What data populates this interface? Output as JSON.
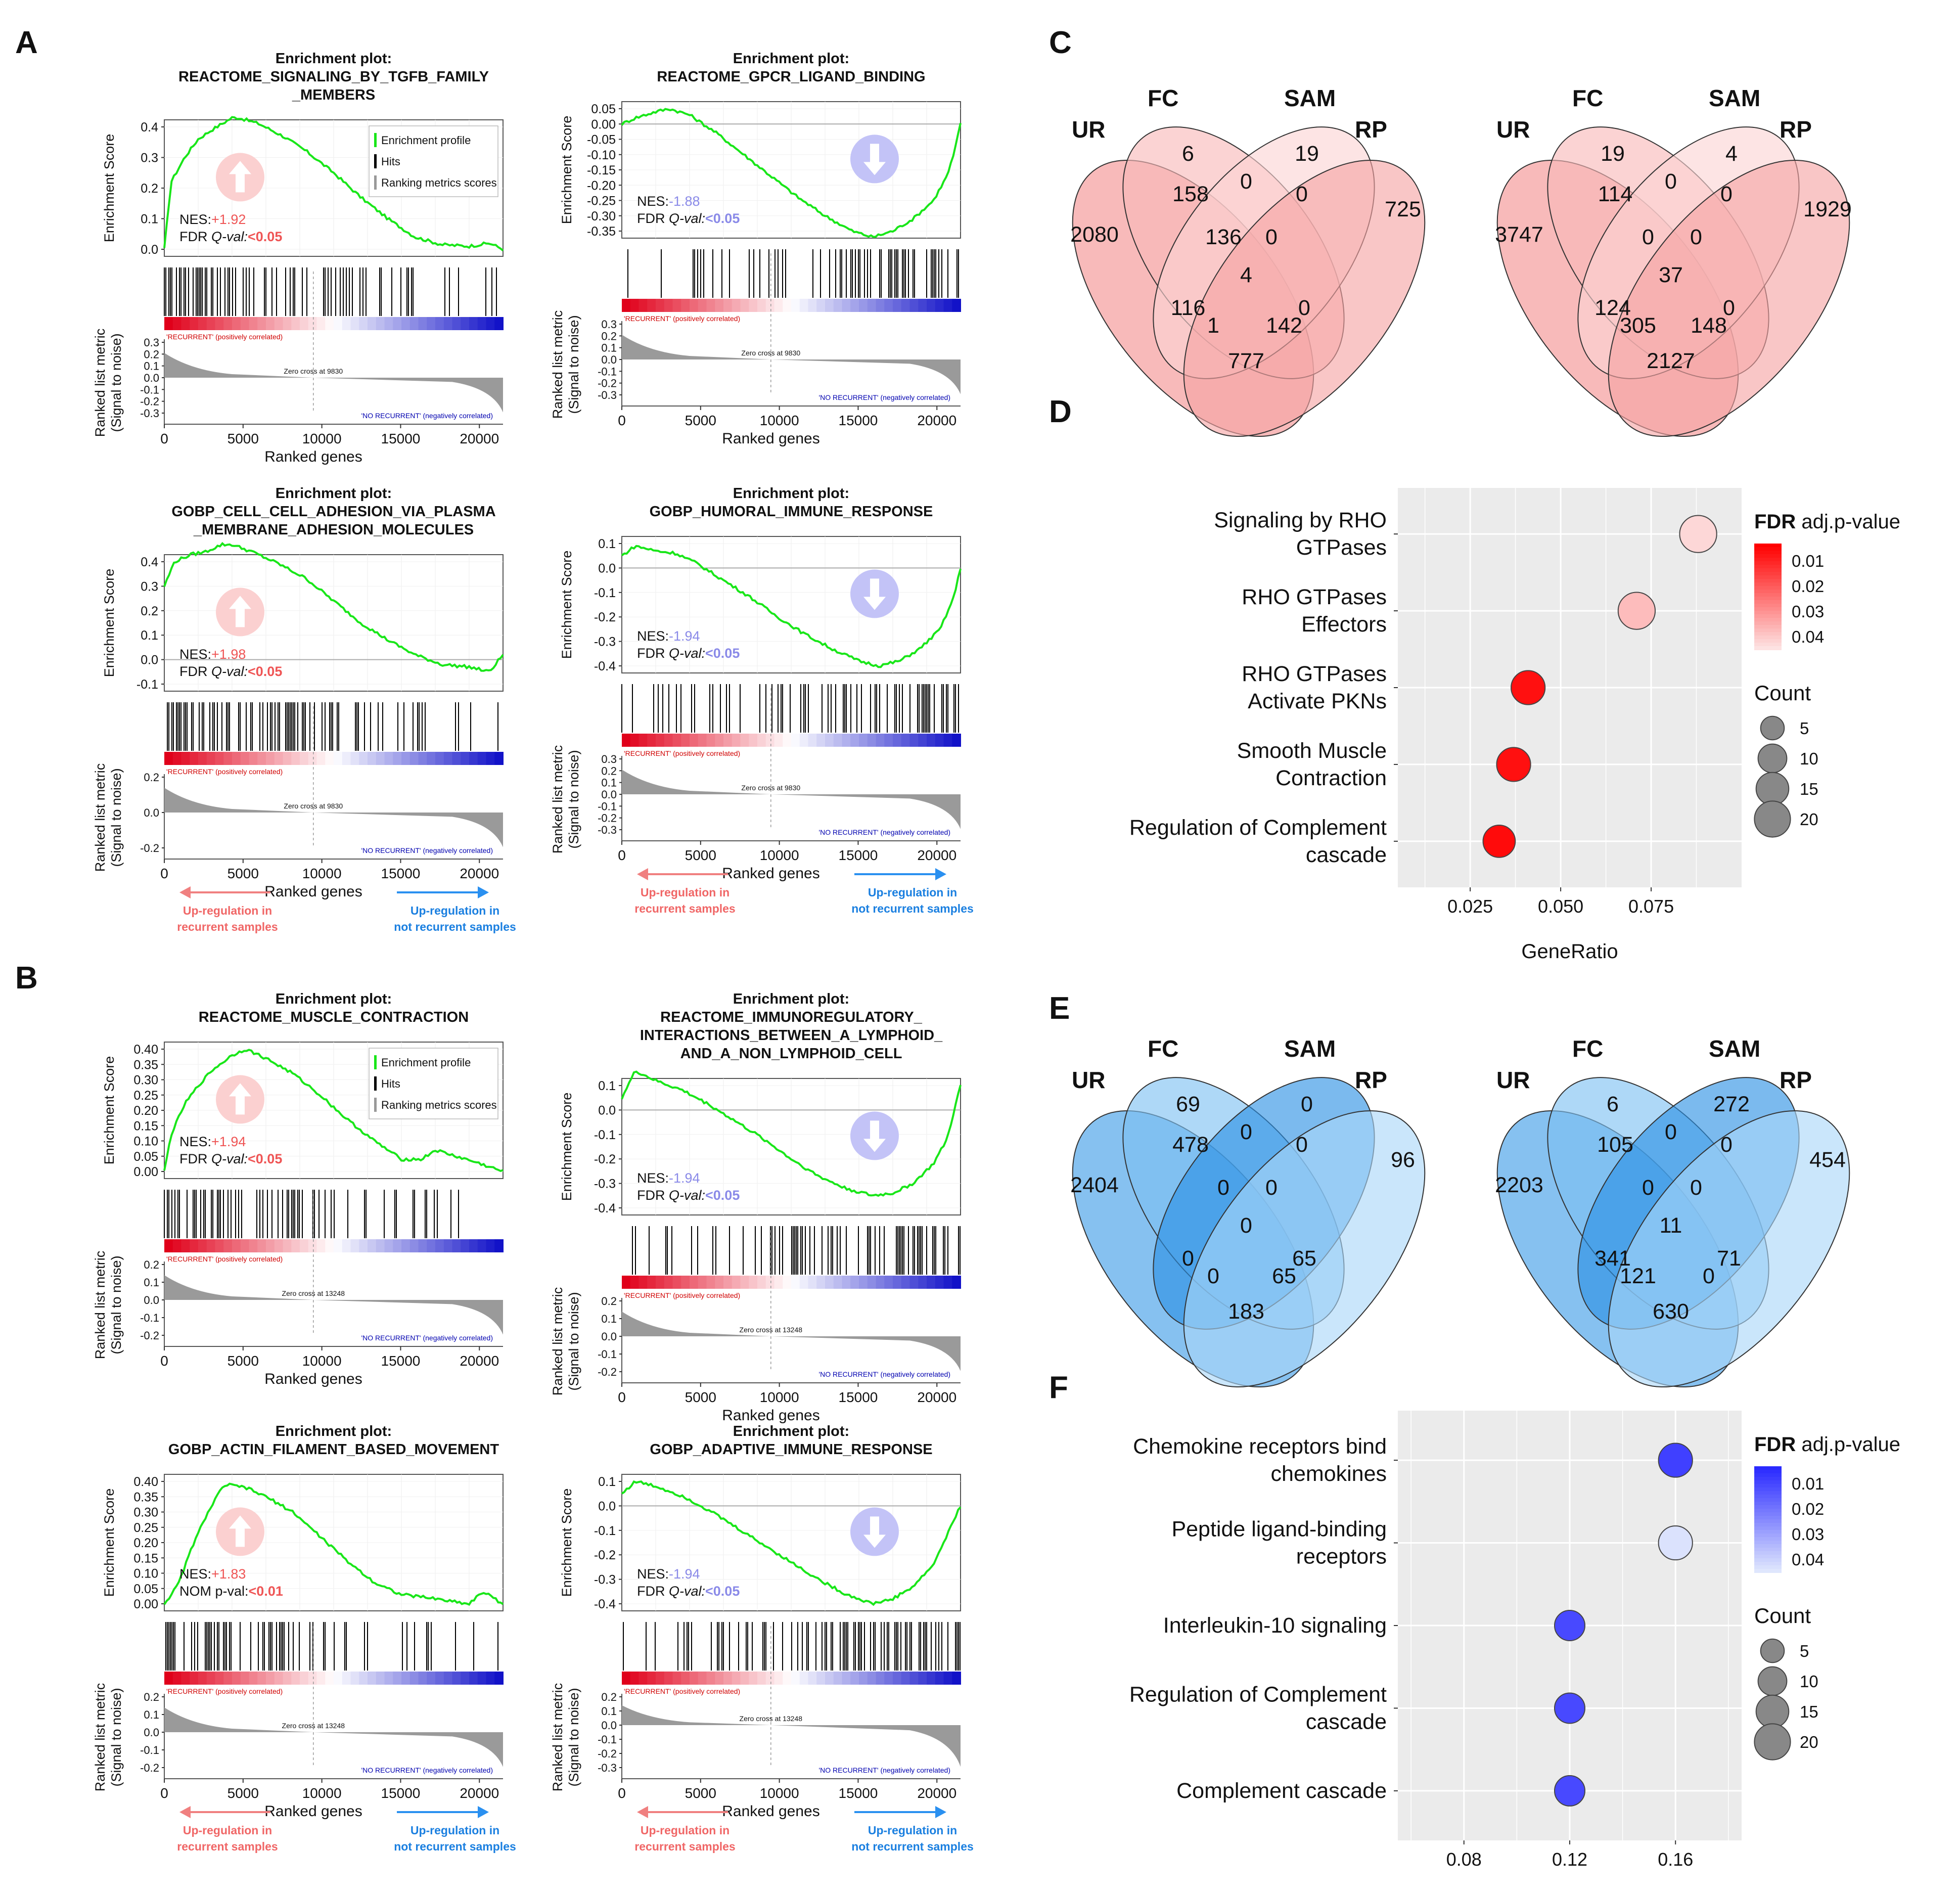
{
  "panel_labels": [
    "A",
    "B",
    "C",
    "D",
    "E",
    "F"
  ],
  "gsea": [
    {
      "title": [
        "Enrichment plot:",
        "REACTOME_SIGNALING_BY_TGFB_FAMILY",
        "_MEMBERS"
      ],
      "es_ticks": [
        "0.4",
        "0.3",
        "0.2",
        "0.1",
        "0.0"
      ],
      "es_curve": [
        [
          0,
          0
        ],
        [
          0.02,
          0.22
        ],
        [
          0.06,
          0.3
        ],
        [
          0.1,
          0.36
        ],
        [
          0.14,
          0.39
        ],
        [
          0.2,
          0.43
        ],
        [
          0.22,
          0.43
        ],
        [
          0.28,
          0.41
        ],
        [
          0.35,
          0.37
        ],
        [
          0.42,
          0.32
        ],
        [
          0.5,
          0.25
        ],
        [
          0.58,
          0.17
        ],
        [
          0.66,
          0.1
        ],
        [
          0.74,
          0.04
        ],
        [
          0.82,
          0.015
        ],
        [
          0.9,
          0.01
        ],
        [
          0.96,
          0.02
        ],
        [
          1,
          0
        ]
      ],
      "rm_ticks": [
        "0.3",
        "0.2",
        "0.1",
        "0.0",
        "-0.1",
        "-0.2",
        "-0.3"
      ],
      "zero_cross": "Zero cross at 9830",
      "nes_label": "NES:",
      "nes": "+1.92",
      "stat_label": "FDR ",
      "stat_label_em": "Q-val:",
      "stat_val": "<0.05",
      "direction": "up",
      "legend": true,
      "legend_items": [
        "Enrichment profile",
        "Hits",
        "Ranking metrics scores"
      ],
      "bottom_arrows": false
    },
    {
      "title": [
        "Enrichment plot:",
        "REACTOME_GPCR_LIGAND_BINDING"
      ],
      "es_ticks": [
        "0.05",
        "0.00",
        "-0.05",
        "-0.10",
        "-0.15",
        "-0.20",
        "-0.25",
        "-0.30",
        "-0.35"
      ],
      "es_curve": [
        [
          0,
          0
        ],
        [
          0.04,
          0.02
        ],
        [
          0.1,
          0.04
        ],
        [
          0.14,
          0.05
        ],
        [
          0.2,
          0.03
        ],
        [
          0.28,
          -0.03
        ],
        [
          0.36,
          -0.1
        ],
        [
          0.44,
          -0.17
        ],
        [
          0.52,
          -0.24
        ],
        [
          0.6,
          -0.3
        ],
        [
          0.68,
          -0.35
        ],
        [
          0.74,
          -0.37
        ],
        [
          0.8,
          -0.35
        ],
        [
          0.86,
          -0.31
        ],
        [
          0.92,
          -0.25
        ],
        [
          0.96,
          -0.17
        ],
        [
          0.98,
          -0.1
        ],
        [
          1,
          0
        ]
      ],
      "rm_ticks": [
        "0.3",
        "0.2",
        "0.1",
        "0.0",
        "-0.1",
        "-0.2",
        "-0.3"
      ],
      "zero_cross": "Zero cross at 9830",
      "nes_label": "NES:",
      "nes": "-1.88",
      "stat_label": "FDR ",
      "stat_label_em": "Q-val:",
      "stat_val": "<0.05",
      "direction": "down",
      "legend": false,
      "bottom_arrows": false
    },
    {
      "title": [
        "Enrichment plot:",
        "GOBP_CELL_CELL_ADHESION_VIA_PLASMA",
        "_MEMBRANE_ADHESION_MOLECULES"
      ],
      "es_ticks": [
        "0.4",
        "0.3",
        "0.2",
        "0.1",
        "0.0",
        "-0.1"
      ],
      "es_curve": [
        [
          0,
          0.3
        ],
        [
          0.03,
          0.4
        ],
        [
          0.08,
          0.43
        ],
        [
          0.12,
          0.44
        ],
        [
          0.17,
          0.47
        ],
        [
          0.2,
          0.47
        ],
        [
          0.26,
          0.44
        ],
        [
          0.34,
          0.39
        ],
        [
          0.42,
          0.33
        ],
        [
          0.5,
          0.24
        ],
        [
          0.58,
          0.15
        ],
        [
          0.66,
          0.08
        ],
        [
          0.74,
          0.02
        ],
        [
          0.82,
          -0.02
        ],
        [
          0.9,
          -0.03
        ],
        [
          0.96,
          -0.05
        ],
        [
          1,
          0.02
        ]
      ],
      "rm_ticks": [
        "0.2",
        "0.0",
        "-0.2"
      ],
      "zero_cross": "Zero cross at 9830",
      "nes_label": "NES:",
      "nes": "+1.98",
      "stat_label": "FDR ",
      "stat_label_em": "Q-val:",
      "stat_val": "<0.05",
      "direction": "up",
      "legend": false,
      "bottom_arrows": true
    },
    {
      "title": [
        "Enrichment plot:",
        "GOBP_HUMORAL_IMMUNE_RESPONSE"
      ],
      "es_ticks": [
        "0.1",
        "0.0",
        "-0.1",
        "-0.2",
        "-0.3",
        "-0.4"
      ],
      "es_curve": [
        [
          0,
          0.05
        ],
        [
          0.04,
          0.09
        ],
        [
          0.1,
          0.07
        ],
        [
          0.16,
          0.06
        ],
        [
          0.22,
          0.02
        ],
        [
          0.3,
          -0.05
        ],
        [
          0.38,
          -0.12
        ],
        [
          0.46,
          -0.2
        ],
        [
          0.54,
          -0.27
        ],
        [
          0.62,
          -0.33
        ],
        [
          0.7,
          -0.38
        ],
        [
          0.76,
          -0.4
        ],
        [
          0.82,
          -0.38
        ],
        [
          0.88,
          -0.33
        ],
        [
          0.94,
          -0.25
        ],
        [
          0.98,
          -0.12
        ],
        [
          1,
          0
        ]
      ],
      "rm_ticks": [
        "0.3",
        "0.2",
        "0.1",
        "0.0",
        "-0.1",
        "-0.2",
        "-0.3"
      ],
      "zero_cross": "Zero cross at 9830",
      "nes_label": "NES:",
      "nes": "-1.94",
      "stat_label": "FDR ",
      "stat_label_em": "Q-val:",
      "stat_val": "<0.05",
      "direction": "down",
      "legend": false,
      "bottom_arrows": true
    },
    {
      "title": [
        "Enrichment plot:",
        "REACTOME_MUSCLE_CONTRACTION"
      ],
      "es_ticks": [
        "0.40",
        "0.35",
        "0.30",
        "0.25",
        "0.20",
        "0.15",
        "0.10",
        "0.05",
        "0.00"
      ],
      "es_curve": [
        [
          0,
          0
        ],
        [
          0.02,
          0.12
        ],
        [
          0.06,
          0.22
        ],
        [
          0.1,
          0.28
        ],
        [
          0.14,
          0.33
        ],
        [
          0.2,
          0.38
        ],
        [
          0.24,
          0.4
        ],
        [
          0.3,
          0.37
        ],
        [
          0.38,
          0.32
        ],
        [
          0.46,
          0.25
        ],
        [
          0.54,
          0.17
        ],
        [
          0.62,
          0.1
        ],
        [
          0.7,
          0.04
        ],
        [
          0.76,
          0.04
        ],
        [
          0.8,
          0.07
        ],
        [
          0.86,
          0.05
        ],
        [
          0.92,
          0.03
        ],
        [
          1,
          0
        ]
      ],
      "rm_ticks": [
        "0.2",
        "0.1",
        "0.0",
        "-0.1",
        "-0.2"
      ],
      "zero_cross": "Zero cross at 13248",
      "nes_label": "NES:",
      "nes": "+1.94",
      "stat_label": "FDR ",
      "stat_label_em": "Q-val:",
      "stat_val": "<0.05",
      "direction": "up",
      "legend": true,
      "legend_items": [
        "Enrichment profile",
        "Hits",
        "Ranking metrics scores"
      ],
      "bottom_arrows": false
    },
    {
      "title": [
        "Enrichment plot:",
        "REACTOME_IMMUNOREGULATORY_",
        "INTERACTIONS_BETWEEN_A_LYMPHOID_",
        "AND_A_NON_LYMPHOID_CELL"
      ],
      "es_ticks": [
        "0.1",
        "0.0",
        "-0.1",
        "-0.2",
        "-0.3",
        "-0.4"
      ],
      "es_curve": [
        [
          0,
          0.05
        ],
        [
          0.04,
          0.16
        ],
        [
          0.1,
          0.12
        ],
        [
          0.18,
          0.08
        ],
        [
          0.26,
          0.02
        ],
        [
          0.34,
          -0.05
        ],
        [
          0.42,
          -0.12
        ],
        [
          0.5,
          -0.2
        ],
        [
          0.58,
          -0.27
        ],
        [
          0.66,
          -0.32
        ],
        [
          0.74,
          -0.35
        ],
        [
          0.8,
          -0.34
        ],
        [
          0.86,
          -0.3
        ],
        [
          0.92,
          -0.22
        ],
        [
          0.96,
          -0.12
        ],
        [
          1,
          0.1
        ]
      ],
      "rm_ticks": [
        "0.2",
        "0.1",
        "0.0",
        "-0.1",
        "-0.2"
      ],
      "zero_cross": "Zero cross at 13248",
      "nes_label": "NES:",
      "nes": "-1.94",
      "stat_label": "FDR ",
      "stat_label_em": "Q-val:",
      "stat_val": "<0.05",
      "direction": "down",
      "legend": false,
      "bottom_arrows": false
    },
    {
      "title": [
        "Enrichment plot:",
        "GOBP_ACTIN_FILAMENT_BASED_MOVEMENT"
      ],
      "es_ticks": [
        "0.40",
        "0.35",
        "0.30",
        "0.25",
        "0.20",
        "0.15",
        "0.10",
        "0.05",
        "0.00"
      ],
      "es_curve": [
        [
          0,
          0
        ],
        [
          0.04,
          0.06
        ],
        [
          0.08,
          0.18
        ],
        [
          0.12,
          0.28
        ],
        [
          0.16,
          0.36
        ],
        [
          0.18,
          0.39
        ],
        [
          0.24,
          0.38
        ],
        [
          0.3,
          0.35
        ],
        [
          0.38,
          0.3
        ],
        [
          0.46,
          0.22
        ],
        [
          0.54,
          0.14
        ],
        [
          0.62,
          0.07
        ],
        [
          0.7,
          0.03
        ],
        [
          0.78,
          0.02
        ],
        [
          0.84,
          0.01
        ],
        [
          0.9,
          0.0
        ],
        [
          0.94,
          0.04
        ],
        [
          1,
          0
        ]
      ],
      "rm_ticks": [
        "0.2",
        "0.1",
        "0.0",
        "-0.1",
        "-0.2"
      ],
      "zero_cross": "Zero cross at 13248",
      "nes_label": "NES:",
      "nes": "+1.83",
      "stat_label": "NOM p-val:",
      "stat_label_em": "",
      "stat_val": "<0.01",
      "direction": "up",
      "legend": false,
      "bottom_arrows": true
    },
    {
      "title": [
        "Enrichment plot:",
        "GOBP_ADAPTIVE_IMMUNE_RESPONSE"
      ],
      "es_ticks": [
        "0.1",
        "0.0",
        "-0.1",
        "-0.2",
        "-0.3",
        "-0.4"
      ],
      "es_curve": [
        [
          0,
          0.05
        ],
        [
          0.04,
          0.1
        ],
        [
          0.1,
          0.08
        ],
        [
          0.18,
          0.04
        ],
        [
          0.26,
          -0.02
        ],
        [
          0.34,
          -0.09
        ],
        [
          0.42,
          -0.16
        ],
        [
          0.5,
          -0.23
        ],
        [
          0.58,
          -0.3
        ],
        [
          0.66,
          -0.36
        ],
        [
          0.74,
          -0.4
        ],
        [
          0.8,
          -0.38
        ],
        [
          0.86,
          -0.33
        ],
        [
          0.92,
          -0.24
        ],
        [
          0.96,
          -0.12
        ],
        [
          1,
          0
        ]
      ],
      "rm_ticks": [
        "0.2",
        "0.1",
        "0.0",
        "-0.1",
        "-0.2",
        "-0.3"
      ],
      "zero_cross": "Zero cross at 13248",
      "nes_label": "NES:",
      "nes": "-1.94",
      "stat_label": "FDR ",
      "stat_label_em": "Q-val:",
      "stat_val": "<0.05",
      "direction": "down",
      "legend": false,
      "bottom_arrows": true
    }
  ],
  "gsea_common": {
    "es_ylabel": "Enrichment Score",
    "rm_ylabel": [
      "Ranked list metric",
      "(Signal to noise)"
    ],
    "xlabel": "Ranked genes",
    "xticks": [
      "0",
      "5000",
      "10000",
      "15000",
      "20000"
    ],
    "recurrent_label": "'RECURRENT' (positively correlated)",
    "no_recurrent_label": "'NO RECURRENT' (negatively correlated)",
    "arrow_left": [
      "Up-regulation in",
      "recurrent samples"
    ],
    "arrow_right": [
      "Up-regulation in",
      "not recurrent samples"
    ]
  },
  "venn": [
    {
      "set_labels": [
        "UR",
        "FC",
        "SAM",
        "RP"
      ],
      "values": {
        "ur": "2080",
        "fc": "6",
        "sam": "19",
        "rp": "725",
        "ur_fc": "158",
        "fc_sam": "0",
        "sam_rp": "0",
        "ur_fc_sam": "136",
        "fc_sam_rp": "0",
        "ur_fc_sam_rp": "4",
        "ur_fc_rp": "116",
        "ur_sam_rp": "0",
        "ur_sam": "1",
        "fc_rp": "142",
        "ur_rp": "777"
      }
    },
    {
      "set_labels": [
        "UR",
        "FC",
        "SAM",
        "RP"
      ],
      "values": {
        "ur": "3747",
        "fc": "19",
        "sam": "4",
        "rp": "1929",
        "ur_fc": "114",
        "fc_sam": "0",
        "sam_rp": "0",
        "ur_fc_sam": "0",
        "fc_sam_rp": "0",
        "ur_fc_sam_rp": "37",
        "ur_fc_rp": "124",
        "ur_sam_rp": "0",
        "ur_sam": "305",
        "fc_rp": "148",
        "ur_rp": "2127"
      }
    },
    {
      "set_labels": [
        "UR",
        "FC",
        "SAM",
        "RP"
      ],
      "values": {
        "ur": "2404",
        "fc": "69",
        "sam": "0",
        "rp": "96",
        "ur_fc": "478",
        "fc_sam": "0",
        "sam_rp": "0",
        "ur_fc_sam": "0",
        "fc_sam_rp": "0",
        "ur_fc_sam_rp": "0",
        "ur_fc_rp": "0",
        "ur_sam_rp": "65",
        "ur_sam": "0",
        "fc_rp": "65",
        "ur_rp": "183"
      }
    },
    {
      "set_labels": [
        "UR",
        "FC",
        "SAM",
        "RP"
      ],
      "values": {
        "ur": "2203",
        "fc": "6",
        "sam": "272",
        "rp": "454",
        "ur_fc": "105",
        "fc_sam": "0",
        "sam_rp": "0",
        "ur_fc_sam": "0",
        "fc_sam_rp": "0",
        "ur_fc_sam_rp": "11",
        "ur_fc_rp": "341",
        "ur_sam_rp": "71",
        "ur_sam": "121",
        "fc_rp": "0",
        "ur_rp": "630"
      }
    }
  ],
  "venn_colors": {
    "red": [
      "#f48f8f",
      "#f9b8b8",
      "#fcd4d4",
      "#f6a3a3"
    ],
    "blue": [
      "#3c9be6",
      "#7dc0f2",
      "#2a90e4",
      "#a9d7f8"
    ]
  },
  "chart_data": [
    {
      "type": "scatter",
      "panel": "D",
      "xlabel": "GeneRatio",
      "xlim": [
        0.005,
        0.1
      ],
      "xticks": [
        "0.025",
        "0.050",
        "0.075"
      ],
      "terms": [
        {
          "label": [
            "Signaling by RHO",
            "GTPases"
          ],
          "x": 0.088,
          "count": 8,
          "fdr": 0.045
        },
        {
          "label": [
            "RHO GTPases",
            "Effectors"
          ],
          "x": 0.071,
          "count": 8,
          "fdr": 0.04
        },
        {
          "label": [
            "RHO GTPases",
            "Activate PKNs"
          ],
          "x": 0.041,
          "count": 6,
          "fdr": 0.008
        },
        {
          "label": [
            "Smooth Muscle",
            "Contraction"
          ],
          "x": 0.037,
          "count": 6,
          "fdr": 0.008
        },
        {
          "label": [
            "Regulation of Complement",
            "cascade"
          ],
          "x": 0.033,
          "count": 5,
          "fdr": 0.007
        }
      ],
      "legend_title_bold": "FDR",
      "legend_title": " adj.p-value",
      "fdr_ticks": [
        "0.01",
        "0.02",
        "0.03",
        "0.04"
      ],
      "count_title": "Count",
      "count_ticks": [
        "5",
        "10",
        "15",
        "20"
      ],
      "low_color": "#ff0000",
      "high_color": "#fde2e2"
    },
    {
      "type": "scatter",
      "panel": "F",
      "xlabel": "GeneRatio",
      "xlim": [
        0.055,
        0.185
      ],
      "xticks": [
        "0.08",
        "0.12",
        "0.16"
      ],
      "terms": [
        {
          "label": [
            "Chemokine receptors bind",
            "chemokines"
          ],
          "x": 0.16,
          "count": 6,
          "fdr": 0.01
        },
        {
          "label": [
            "Peptide ligand-binding",
            "receptors"
          ],
          "x": 0.16,
          "count": 6,
          "fdr": 0.046
        },
        {
          "label": [
            "Interleukin-10 signaling"
          ],
          "x": 0.12,
          "count": 4,
          "fdr": 0.012
        },
        {
          "label": [
            "Regulation of Complement",
            "cascade"
          ],
          "x": 0.12,
          "count": 4,
          "fdr": 0.012
        },
        {
          "label": [
            "Complement cascade"
          ],
          "x": 0.12,
          "count": 4,
          "fdr": 0.012
        }
      ],
      "legend_title_bold": "FDR",
      "legend_title": " adj.p-value",
      "fdr_ticks": [
        "0.01",
        "0.02",
        "0.03",
        "0.04"
      ],
      "count_title": "Count",
      "count_ticks": [
        "5",
        "10",
        "15",
        "20"
      ],
      "low_color": "#2a2aff",
      "high_color": "#dfe6fd"
    }
  ]
}
